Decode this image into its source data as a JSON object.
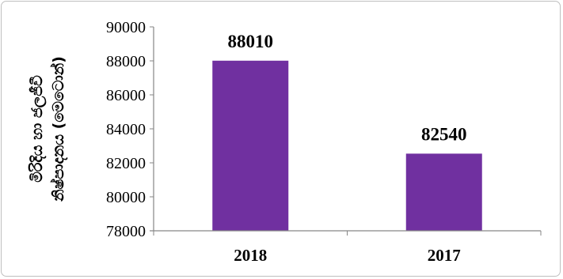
{
  "chart_data": {
    "type": "bar",
    "categories": [
      "2018",
      "2017"
    ],
    "values": [
      88010,
      82540
    ],
    "data_labels": [
      "88010",
      "82540"
    ],
    "ylabel_lines": [
      "මිරිදිය හා ජලජීවී",
      "නිෂ්පාදනය (මෙටොන්)"
    ],
    "ylim": [
      78000,
      90000
    ],
    "yticks": [
      "78000",
      "80000",
      "82000",
      "84000",
      "86000",
      "88000",
      "90000"
    ],
    "grid": false,
    "legend": "none",
    "colors": {
      "bar": "#7030a0",
      "axis": "#868686"
    }
  }
}
